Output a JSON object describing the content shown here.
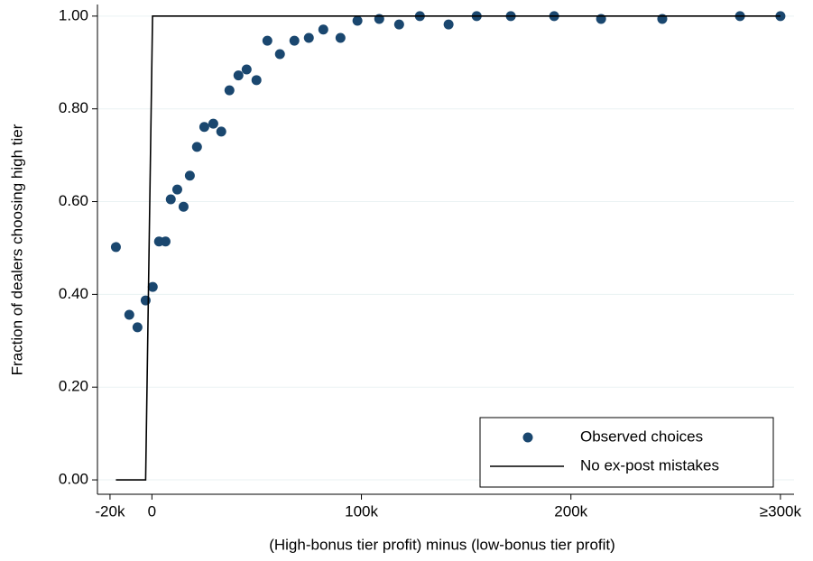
{
  "chart_data": {
    "type": "scatter",
    "x_label": "(High-bonus tier profit) minus (low-bonus tier profit)",
    "y_label": "Fraction of dealers choosing high tier",
    "xlim": [
      -26000,
      306500
    ],
    "ylim": [
      -0.031,
      1.025
    ],
    "xticks": [
      {
        "value": -20000,
        "label": "-20k"
      },
      {
        "value": 0,
        "label": "0"
      },
      {
        "value": 100000,
        "label": "100k"
      },
      {
        "value": 200000,
        "label": "200k"
      },
      {
        "value": 300000,
        "label": "≥300k"
      }
    ],
    "yticks": [
      {
        "value": 0,
        "label": "0.00"
      },
      {
        "value": 0.2,
        "label": "0.20"
      },
      {
        "value": 0.4,
        "label": "0.40"
      },
      {
        "value": 0.6,
        "label": "0.60"
      },
      {
        "value": 0.8,
        "label": "0.80"
      },
      {
        "value": 1,
        "label": "1.00"
      }
    ],
    "grid": true,
    "legend": "lower right",
    "series": [
      {
        "name": "Observed choices",
        "type": "scatter",
        "color": "#1a476f",
        "x": [
          -17200,
          -10800,
          -6900,
          -3000,
          400,
          3400,
          6500,
          9000,
          12100,
          15100,
          18100,
          21500,
          25000,
          29300,
          33100,
          37000,
          41300,
          45200,
          49900,
          55100,
          61100,
          68000,
          74900,
          81800,
          90000,
          98100,
          108500,
          118000,
          127900,
          141600,
          155000,
          171300,
          192000,
          214400,
          243600,
          280700,
          300000
        ],
        "values": [
          0.502,
          0.356,
          0.329,
          0.387,
          0.416,
          0.514,
          0.514,
          0.605,
          0.626,
          0.589,
          0.656,
          0.718,
          0.761,
          0.768,
          0.751,
          0.84,
          0.872,
          0.885,
          0.862,
          0.947,
          0.918,
          0.947,
          0.953,
          0.971,
          0.953,
          0.99,
          0.994,
          0.982,
          1,
          0.982,
          1,
          1,
          1,
          0.994,
          0.994,
          1,
          1
        ]
      },
      {
        "name": "No ex-post mistakes",
        "type": "line",
        "color": "#000000",
        "x": [
          -17200,
          -3000,
          300,
          300000
        ],
        "values": [
          0,
          0,
          1,
          1
        ]
      }
    ]
  }
}
